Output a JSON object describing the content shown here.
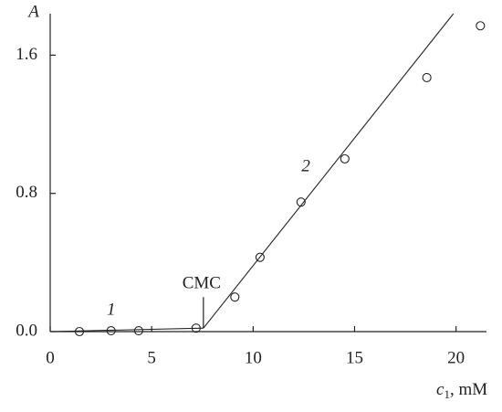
{
  "chart_data": {
    "type": "scatter",
    "y_label": "A",
    "x_label": "c",
    "x_label_sub": "1",
    "x_label_unit": ", mM",
    "xlim": [
      0,
      21.5
    ],
    "xticks": [
      0,
      5,
      10,
      15,
      20
    ],
    "ylim": [
      0,
      1.84
    ],
    "yticks": [
      {
        "value": 0,
        "label": "0.0"
      },
      0.8,
      1.6
    ],
    "marker_color": "#222",
    "markers": {
      "x": [
        1.44,
        3.0,
        4.36,
        7.19,
        9.1,
        10.34,
        12.36,
        14.52,
        18.56,
        21.2
      ],
      "values": [
        0,
        0.005,
        0.005,
        0.02,
        0.2,
        0.43,
        0.75,
        1.0,
        1.47,
        1.77
      ]
    },
    "lines": [
      {
        "x": [
          0,
          7.55
        ],
        "values": [
          0,
          0.02
        ]
      },
      {
        "x": [
          7.55,
          19.87
        ],
        "values": [
          0.02,
          1.84
        ]
      }
    ],
    "line_labels": [
      "1",
      "2"
    ],
    "cmc_label": "CMC",
    "cmc_x": 7.55
  }
}
